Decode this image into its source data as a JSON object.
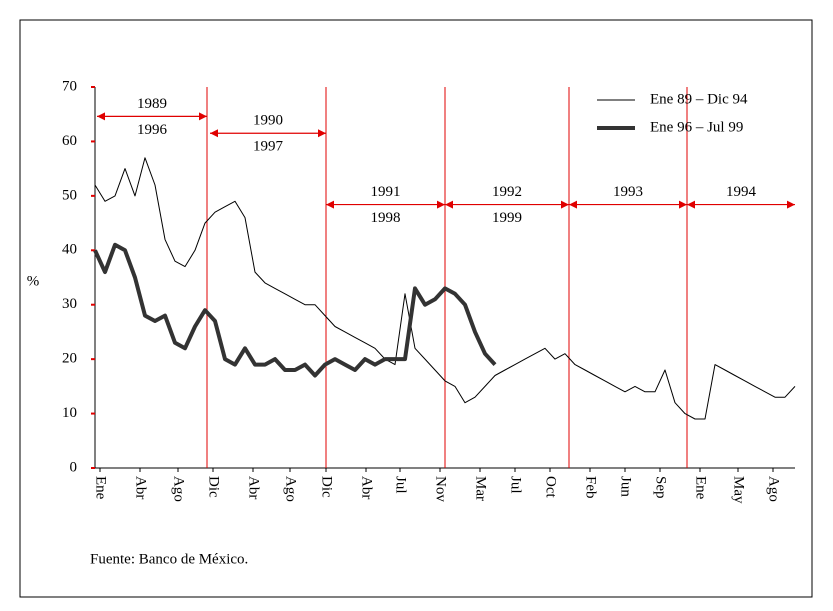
{
  "chart_data": {
    "type": "line",
    "ylabel": "%",
    "source": "Fuente: Banco de México.",
    "xlim": [
      0,
      70
    ],
    "ylim": [
      0,
      70
    ],
    "yticks": [
      0,
      10,
      20,
      30,
      40,
      50,
      60,
      70
    ],
    "xticks": [
      {
        "value": 0.5,
        "label": "Ene"
      },
      {
        "value": 4.5,
        "label": "Abr"
      },
      {
        "value": 8.3,
        "label": "Ago"
      },
      {
        "value": 11.8,
        "label": "Dic"
      },
      {
        "value": 15.8,
        "label": "Abr"
      },
      {
        "value": 19.5,
        "label": "Ago"
      },
      {
        "value": 23.1,
        "label": "Dic"
      },
      {
        "value": 27.1,
        "label": "Abr"
      },
      {
        "value": 30.5,
        "label": "Jul"
      },
      {
        "value": 34.5,
        "label": "Nov"
      },
      {
        "value": 38.5,
        "label": "Mar"
      },
      {
        "value": 42,
        "label": "Jul"
      },
      {
        "value": 45.5,
        "label": "Oct"
      },
      {
        "value": 49.5,
        "label": "Feb"
      },
      {
        "value": 53,
        "label": "Jun"
      },
      {
        "value": 56.5,
        "label": "Sep"
      },
      {
        "value": 60.5,
        "label": "Ene"
      },
      {
        "value": 64.3,
        "label": "May"
      },
      {
        "value": 67.8,
        "label": "Ago"
      }
    ],
    "vlines": [
      11.2,
      23.1,
      35,
      47.4,
      59.2
    ],
    "vline_color": "#e00000",
    "annotations": [
      {
        "text": "1989",
        "text2": "1996",
        "x": [
          0.2,
          11.2
        ],
        "y": 64.6
      },
      {
        "text": "1990",
        "text2": "1997",
        "x": [
          11.5,
          23.1
        ],
        "y": 61.5
      },
      {
        "text": "1991",
        "text2": "1998",
        "x": [
          23.1,
          35
        ],
        "y": 48.4
      },
      {
        "text": "1992",
        "text2": "1999",
        "x": [
          35,
          47.4
        ],
        "y": 48.4
      },
      {
        "text": "1993",
        "x": [
          47.4,
          59.2
        ],
        "y": 48.4
      },
      {
        "text": "1994",
        "x": [
          59.2,
          70
        ],
        "y": 48.4
      }
    ],
    "legend": "top-right",
    "series": [
      {
        "name": "Ene 89 – Dic 94",
        "color": "#000000",
        "width": 1,
        "values": [
          52,
          49,
          50,
          55,
          50,
          57,
          52,
          42,
          38,
          37,
          40,
          45,
          47,
          48,
          49,
          46,
          36,
          34,
          33,
          32,
          31,
          30,
          30,
          28,
          26,
          25,
          24,
          23,
          22,
          20,
          19,
          32,
          22,
          20,
          18,
          16,
          15,
          12,
          13,
          15,
          17,
          18,
          19,
          20,
          21,
          22,
          20,
          21,
          19,
          18,
          17,
          16,
          15,
          14,
          15,
          14,
          14,
          18,
          12,
          10,
          9,
          9,
          19,
          18,
          17,
          16,
          15,
          14,
          13,
          13,
          15
        ]
      },
      {
        "name": "Ene 96 – Jul 99",
        "color": "#333333",
        "width": 4,
        "values": [
          40,
          36,
          41,
          40,
          35,
          28,
          27,
          28,
          23,
          22,
          26,
          29,
          27,
          20,
          19,
          22,
          19,
          19,
          20,
          18,
          18,
          19,
          17,
          19,
          20,
          19,
          18,
          20,
          19,
          20,
          20,
          20,
          33,
          30,
          31,
          33,
          32,
          30,
          25,
          21,
          19
        ]
      }
    ]
  }
}
